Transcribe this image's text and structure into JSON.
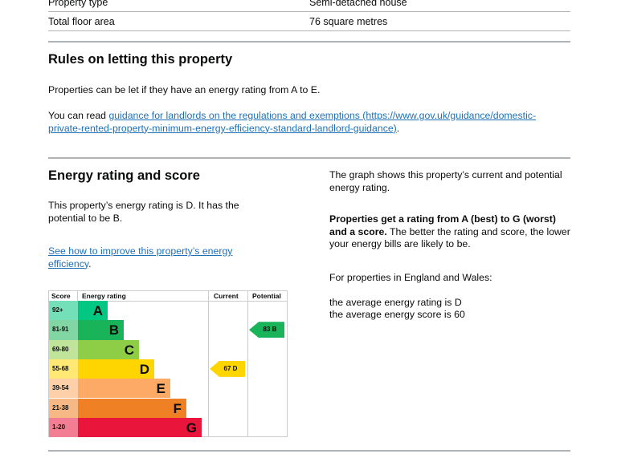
{
  "summary": {
    "rows": [
      {
        "label": "Property type",
        "value": "Semi-detached house"
      },
      {
        "label": "Total floor area",
        "value": "76 square metres"
      }
    ]
  },
  "rules": {
    "title": "Rules on letting this property",
    "p1": "Properties can be let if they have an energy rating from A to E.",
    "p2_prefix": "You can read ",
    "link_text": "guidance for landlords on the regulations and exemptions",
    "link_url": "(https://www.gov.uk/guidance/domestic-private-rented-property-minimum-energy-efficiency-standard-landlord-guidance)",
    "p2_suffix": "."
  },
  "energy": {
    "title": "Energy rating and score",
    "p1": "This property’s energy rating is D. It has the potential to be B.",
    "link": "See how to improve this property’s energy efficiency",
    "link_suffix": ".",
    "right_p1": "The graph shows this property’s current and potential energy rating.",
    "right_p2_bold": "Properties get a rating from A (best) to G (worst) and a score.",
    "right_p2": " The better the rating and score, the lower your energy bills are likely to be.",
    "right_p3": "For properties in England and Wales:",
    "right_p4a": "the average energy rating is D",
    "right_p4b": "the average energy score is 60"
  },
  "chart_data": {
    "type": "table",
    "headers": [
      "Score",
      "Energy rating",
      "Current",
      "Potential"
    ],
    "bands": [
      {
        "score": "92+",
        "letter": "A",
        "color": "#00c781"
      },
      {
        "score": "81-91",
        "letter": "B",
        "color": "#19b459"
      },
      {
        "score": "69-80",
        "letter": "C",
        "color": "#8dce46"
      },
      {
        "score": "55-68",
        "letter": "D",
        "color": "#ffd500"
      },
      {
        "score": "39-54",
        "letter": "E",
        "color": "#fcaa65"
      },
      {
        "score": "21-38",
        "letter": "F",
        "color": "#ef8023"
      },
      {
        "score": "1-20",
        "letter": "G",
        "color": "#e9153b"
      }
    ],
    "current": {
      "score": 67,
      "letter": "D",
      "label": "67 D",
      "color": "#ffd500"
    },
    "potential": {
      "score": 83,
      "letter": "B",
      "label": "83 B",
      "color": "#19b459"
    }
  }
}
